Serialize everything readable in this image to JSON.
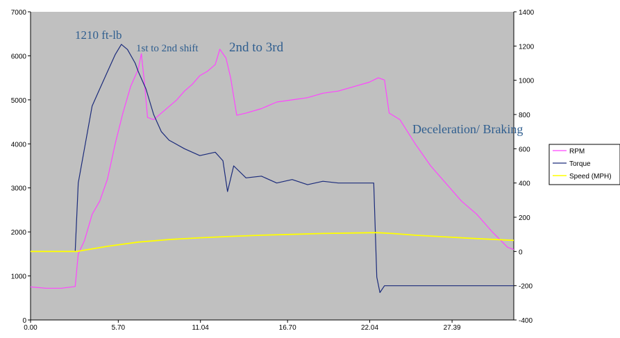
{
  "chart_data": {
    "type": "line",
    "title": "",
    "xlabel": "",
    "ylabel": "",
    "y2label": "",
    "grid": false,
    "legend_position": "right",
    "xlim": [
      0,
      31.4
    ],
    "ylim": [
      0,
      7000
    ],
    "y2lim": [
      -400,
      1400
    ],
    "x_ticks": [
      "0.00",
      "5.70",
      "11.04",
      "16.70",
      "22.04",
      "27.39"
    ],
    "y_ticks": [
      "0",
      "1000",
      "2000",
      "3000",
      "4000",
      "5000",
      "6000",
      "7000"
    ],
    "y2_ticks": [
      "-400",
      "-200",
      "0",
      "200",
      "400",
      "600",
      "800",
      "1000",
      "1200",
      "1400"
    ],
    "colors": {
      "plot_bg": "#c0c0c0",
      "RPM": "#ff44ff",
      "Torque": "#1a2a7a",
      "Speed": "#ffff00",
      "annotation": "#2f5e8f"
    },
    "annotations": [
      "1210 ft-lb",
      "1st to 2nd shift",
      "2nd to 3rd",
      "Deceleration/ Braking"
    ],
    "series": [
      {
        "name": "RPM",
        "axis": "left",
        "points": [
          [
            0,
            750
          ],
          [
            1,
            720
          ],
          [
            2,
            720
          ],
          [
            2.9,
            760
          ],
          [
            3.1,
            1500
          ],
          [
            3.5,
            1800
          ],
          [
            4,
            2400
          ],
          [
            4.5,
            2700
          ],
          [
            5,
            3200
          ],
          [
            5.5,
            4000
          ],
          [
            6,
            4700
          ],
          [
            6.5,
            5300
          ],
          [
            7,
            5700
          ],
          [
            7.2,
            6050
          ],
          [
            7.4,
            5400
          ],
          [
            7.6,
            4600
          ],
          [
            8,
            4550
          ],
          [
            8.5,
            4700
          ],
          [
            9,
            4850
          ],
          [
            9.5,
            5000
          ],
          [
            10,
            5200
          ],
          [
            10.5,
            5350
          ],
          [
            11,
            5550
          ],
          [
            11.5,
            5650
          ],
          [
            12,
            5800
          ],
          [
            12.3,
            6150
          ],
          [
            12.7,
            5950
          ],
          [
            13,
            5500
          ],
          [
            13.4,
            4650
          ],
          [
            14,
            4700
          ],
          [
            15,
            4800
          ],
          [
            16,
            4950
          ],
          [
            17,
            5000
          ],
          [
            18,
            5050
          ],
          [
            19,
            5150
          ],
          [
            20,
            5200
          ],
          [
            21,
            5300
          ],
          [
            22,
            5400
          ],
          [
            22.6,
            5500
          ],
          [
            23,
            5450
          ],
          [
            23.3,
            4700
          ],
          [
            24,
            4550
          ],
          [
            25,
            4000
          ],
          [
            26,
            3500
          ],
          [
            27,
            3100
          ],
          [
            28,
            2700
          ],
          [
            29,
            2400
          ],
          [
            30,
            2000
          ],
          [
            31,
            1650
          ],
          [
            31.4,
            1600
          ]
        ]
      },
      {
        "name": "Torque",
        "axis": "right",
        "points": [
          [
            0,
            0
          ],
          [
            2.9,
            0
          ],
          [
            3.1,
            400
          ],
          [
            3.5,
            600
          ],
          [
            4,
            850
          ],
          [
            4.5,
            950
          ],
          [
            5,
            1050
          ],
          [
            5.5,
            1150
          ],
          [
            5.9,
            1210
          ],
          [
            6.3,
            1180
          ],
          [
            6.8,
            1100
          ],
          [
            7,
            1050
          ],
          [
            7.5,
            950
          ],
          [
            8,
            800
          ],
          [
            8.5,
            700
          ],
          [
            9,
            650
          ],
          [
            10,
            600
          ],
          [
            11,
            560
          ],
          [
            12,
            580
          ],
          [
            12.5,
            530
          ],
          [
            12.8,
            350
          ],
          [
            13.2,
            500
          ],
          [
            14,
            430
          ],
          [
            15,
            440
          ],
          [
            16,
            400
          ],
          [
            17,
            420
          ],
          [
            18,
            390
          ],
          [
            19,
            410
          ],
          [
            20,
            400
          ],
          [
            21,
            400
          ],
          [
            22,
            400
          ],
          [
            22.3,
            400
          ],
          [
            22.5,
            -150
          ],
          [
            22.7,
            -240
          ],
          [
            23,
            -200
          ],
          [
            25,
            -200
          ],
          [
            27,
            -200
          ],
          [
            29,
            -200
          ],
          [
            31.4,
            -200
          ]
        ]
      },
      {
        "name": "Speed (MPH)",
        "axis": "right",
        "points": [
          [
            0,
            0
          ],
          [
            3,
            0
          ],
          [
            5,
            30
          ],
          [
            7,
            55
          ],
          [
            9,
            70
          ],
          [
            11,
            80
          ],
          [
            13,
            88
          ],
          [
            15,
            95
          ],
          [
            17,
            100
          ],
          [
            19,
            105
          ],
          [
            21,
            108
          ],
          [
            22.5,
            110
          ],
          [
            23.5,
            105
          ],
          [
            25,
            95
          ],
          [
            27,
            85
          ],
          [
            29,
            75
          ],
          [
            31.4,
            65
          ]
        ]
      }
    ]
  }
}
